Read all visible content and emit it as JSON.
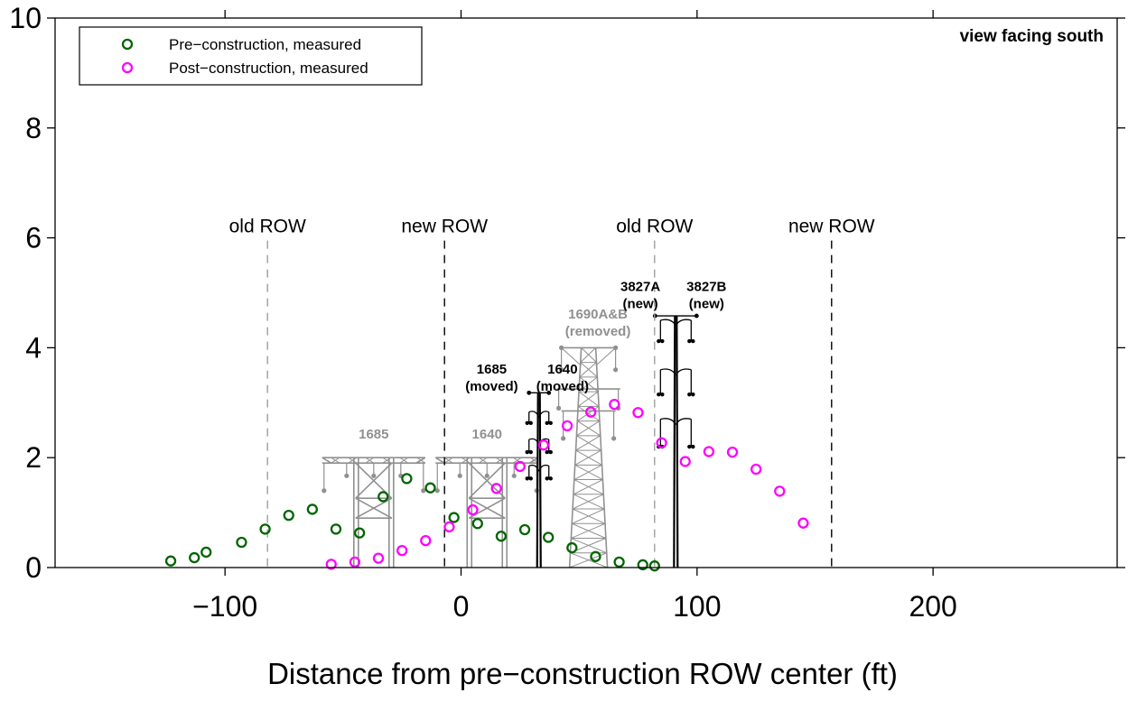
{
  "chart_data": {
    "type": "scatter",
    "title": "",
    "xlabel": "Distance from pre−construction ROW center (ft)",
    "ylabel": "",
    "xlim": [
      -172,
      278
    ],
    "ylim": [
      0,
      10
    ],
    "x_ticks": [
      -100,
      0,
      100,
      200
    ],
    "x_tick_labels": [
      "−100",
      "0",
      "100",
      "200"
    ],
    "y_ticks": [
      0,
      2,
      4,
      6,
      8,
      10
    ],
    "y_tick_labels": [
      "0",
      "2",
      "4",
      "6",
      "8",
      "10"
    ],
    "grid": false,
    "legend_position": "top-left",
    "corner_note": "view facing south",
    "series": [
      {
        "name": "Pre−construction, measured",
        "color": "#006400",
        "x": [
          -123,
          -113,
          -108,
          -93,
          -83,
          -73,
          -63,
          -53,
          -43,
          -33,
          -23,
          -13,
          -3,
          7,
          17,
          27,
          37,
          47,
          57,
          67,
          77,
          82
        ],
        "y": [
          0.12,
          0.18,
          0.28,
          0.46,
          0.7,
          0.95,
          1.06,
          0.7,
          0.63,
          1.29,
          1.62,
          1.45,
          0.91,
          0.8,
          0.57,
          0.69,
          0.55,
          0.36,
          0.2,
          0.1,
          0.05,
          0.03
        ]
      },
      {
        "name": "Post−construction, measured",
        "color": "#ff00ff",
        "x": [
          -55,
          -45,
          -35,
          -25,
          -15,
          -5,
          5,
          15,
          25,
          35,
          45,
          55,
          65,
          75,
          85,
          95,
          105,
          115,
          125,
          135,
          145
        ],
        "y": [
          0.06,
          0.1,
          0.17,
          0.31,
          0.49,
          0.74,
          1.05,
          1.44,
          1.84,
          2.23,
          2.58,
          2.83,
          2.97,
          2.82,
          2.27,
          1.93,
          2.11,
          2.1,
          1.79,
          1.39,
          0.81
        ]
      }
    ],
    "row_lines": [
      {
        "label": "old ROW",
        "x": -82,
        "color": "#9e9e9e"
      },
      {
        "label": "new ROW",
        "x": -7,
        "color": "#000000"
      },
      {
        "label": "old ROW",
        "x": 82,
        "color": "#9e9e9e"
      },
      {
        "label": "new ROW",
        "x": 157,
        "color": "#000000"
      }
    ],
    "annotations": [
      {
        "lines": [
          "1685"
        ],
        "x": -37,
        "y": 2.35,
        "color": "#909090"
      },
      {
        "lines": [
          "1640"
        ],
        "x": 11,
        "y": 2.35,
        "color": "#909090"
      },
      {
        "lines": [
          "1685",
          "(moved)"
        ],
        "x": 13,
        "y": 3.53,
        "color": "#000000"
      },
      {
        "lines": [
          "1640",
          "(moved)"
        ],
        "x": 43,
        "y": 3.53,
        "color": "#000000"
      },
      {
        "lines": [
          "1690A&B",
          "(removed)"
        ],
        "x": 58,
        "y": 4.53,
        "color": "#909090"
      },
      {
        "lines": [
          "3827A",
          "(new)"
        ],
        "x": 76,
        "y": 5.03,
        "color": "#000000"
      },
      {
        "lines": [
          "3827B",
          "(new)"
        ],
        "x": 104,
        "y": 5.03,
        "color": "#000000"
      }
    ]
  }
}
